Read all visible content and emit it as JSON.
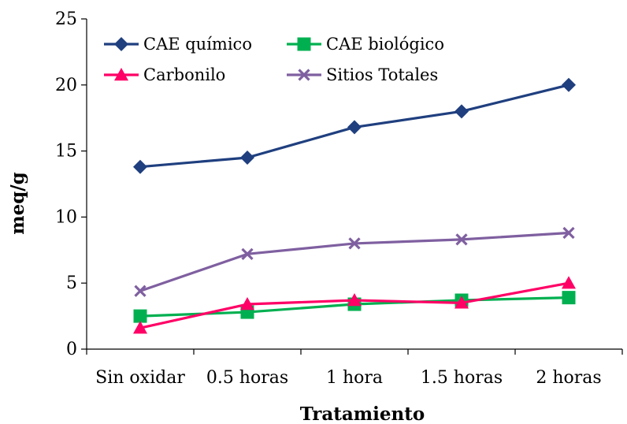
{
  "chart_data": {
    "type": "line",
    "title": "",
    "xlabel": "Tratamiento",
    "ylabel": "meq/g",
    "categories": [
      "Sin oxidar",
      "0.5 horas",
      "1 hora",
      "1.5 horas",
      "2 horas"
    ],
    "ylim": [
      0,
      25
    ],
    "yticks": [
      0,
      5,
      10,
      15,
      20,
      25
    ],
    "grid": false,
    "legend_position": "top-left",
    "series": [
      {
        "name": "CAE químico",
        "values": [
          13.8,
          14.5,
          16.8,
          18.0,
          20.0
        ],
        "color": "#1F3F7F",
        "marker": "diamond"
      },
      {
        "name": "CAE biológico",
        "values": [
          2.5,
          2.8,
          3.4,
          3.7,
          3.9
        ],
        "color": "#00B050",
        "marker": "square"
      },
      {
        "name": "Carbonilo",
        "values": [
          1.6,
          3.4,
          3.7,
          3.5,
          5.0
        ],
        "color": "#FF0066",
        "marker": "triangle"
      },
      {
        "name": "Sitios Totales",
        "values": [
          4.4,
          7.2,
          8.0,
          8.3,
          8.8
        ],
        "color": "#7F5FA0",
        "marker": "x"
      }
    ]
  }
}
